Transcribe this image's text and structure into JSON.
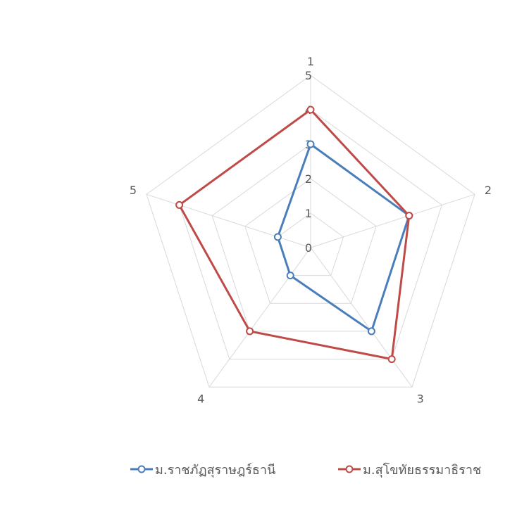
{
  "chart_data": {
    "type": "radar",
    "categories": [
      "1",
      "2",
      "3",
      "4",
      "5"
    ],
    "rlim": [
      0,
      5
    ],
    "rticks": [
      0,
      1,
      2,
      3,
      4,
      5
    ],
    "grid": true,
    "legend": "bottom",
    "series": [
      {
        "name": "ม.ราชภัฏสุราษฎร์ธานี",
        "color": "#4a7ebb",
        "values": [
          3,
          3,
          3,
          1,
          1
        ]
      },
      {
        "name": "ม.สุโขทัยธรรมาธิราช",
        "color": "#be4b48",
        "values": [
          4,
          3,
          4,
          3,
          4
        ]
      }
    ]
  }
}
